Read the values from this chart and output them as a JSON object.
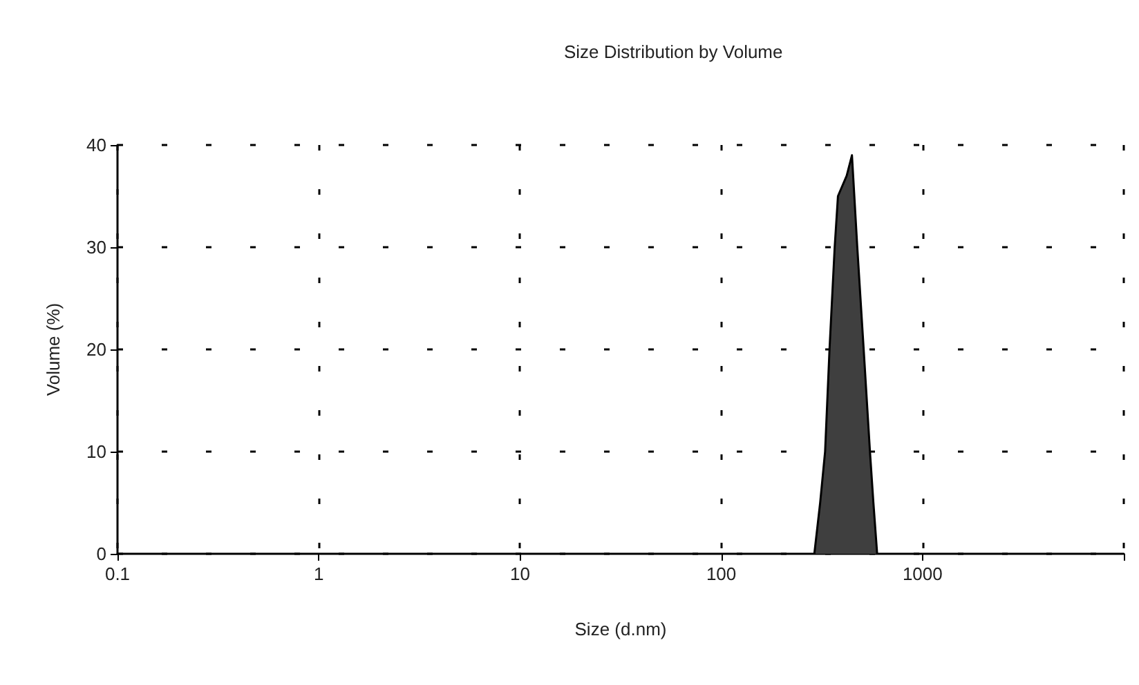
{
  "chart_data": {
    "type": "area",
    "title": "Size Distribution by Volume",
    "xlabel": "Size (d.nm)",
    "ylabel": "Volume (%)",
    "log": "x",
    "xlim": [
      0.1,
      10000
    ],
    "xticks": [
      0.1,
      1,
      10,
      100,
      1000,
      {
        "value": 10000,
        "label": null
      }
    ],
    "ylim": [
      0,
      40
    ],
    "yticks": [
      0,
      10,
      20,
      30,
      40
    ],
    "grid": true,
    "line_style": "solid",
    "marker": "none",
    "series": [
      {
        "color": "#3f3f3f",
        "x": [
          290,
          310,
          328,
          345,
          366,
          380,
          420,
          446,
          474,
          510,
          548,
          570,
          595
        ],
        "values": [
          0,
          5,
          10,
          20,
          30,
          35,
          37,
          39,
          30,
          20,
          10,
          5,
          0
        ]
      }
    ]
  }
}
